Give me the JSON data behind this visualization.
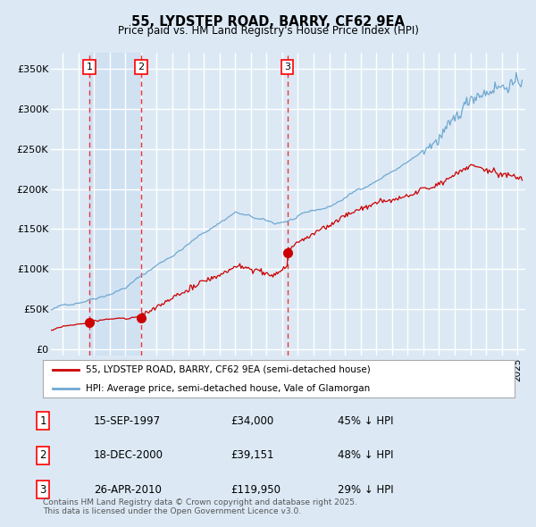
{
  "title": "55, LYDSTEP ROAD, BARRY, CF62 9EA",
  "subtitle": "Price paid vs. HM Land Registry's House Price Index (HPI)",
  "ylabel_ticks": [
    "£0",
    "£50K",
    "£100K",
    "£150K",
    "£200K",
    "£250K",
    "£300K",
    "£350K"
  ],
  "ytick_values": [
    0,
    50000,
    100000,
    150000,
    200000,
    250000,
    300000,
    350000
  ],
  "ylim": [
    -8000,
    370000
  ],
  "xlim_start": 1995.25,
  "xlim_end": 2025.5,
  "legend_line1": "55, LYDSTEP ROAD, BARRY, CF62 9EA (semi-detached house)",
  "legend_line2": "HPI: Average price, semi-detached house, Vale of Glamorgan",
  "sale1_date": "15-SEP-1997",
  "sale1_price": 34000,
  "sale1_pct": "45% ↓ HPI",
  "sale2_date": "18-DEC-2000",
  "sale2_price": 39151,
  "sale2_pct": "48% ↓ HPI",
  "sale3_date": "26-APR-2010",
  "sale3_price": 119950,
  "sale3_pct": "29% ↓ HPI",
  "footnote": "Contains HM Land Registry data © Crown copyright and database right 2025.\nThis data is licensed under the Open Government Licence v3.0.",
  "bg_color": "#dce9f5",
  "plot_bg_color": "#dce9f5",
  "shade_bg_color": "#c8dcf0",
  "grid_color": "#ffffff",
  "red_line_color": "#cc0000",
  "blue_line_color": "#6fa8d0",
  "sale_marker_color": "#cc0000",
  "vline_color": "#ee3333",
  "sale1_x": 1997.71,
  "sale2_x": 2001.0,
  "sale3_x": 2010.32
}
